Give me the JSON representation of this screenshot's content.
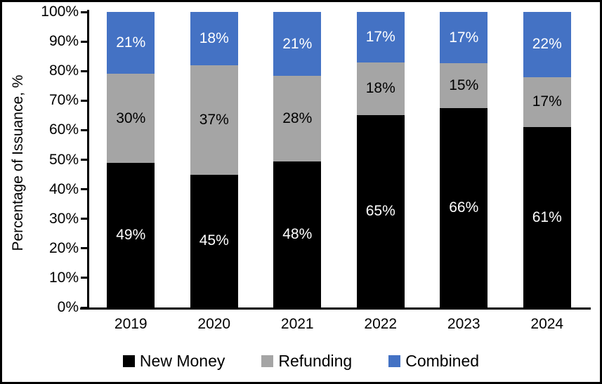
{
  "chart_data": {
    "type": "bar",
    "variant": "stacked-100",
    "title": "",
    "xlabel": "",
    "ylabel": "Percentage of Issuance, %",
    "ylim": [
      0,
      100
    ],
    "ytick_step": 10,
    "ytick_labels": [
      "0%",
      "10%",
      "20%",
      "30%",
      "40%",
      "50%",
      "60%",
      "70%",
      "80%",
      "90%",
      "100%"
    ],
    "categories": [
      "2019",
      "2020",
      "2021",
      "2022",
      "2023",
      "2024"
    ],
    "series": [
      {
        "name": "New Money",
        "color": "#000000",
        "label_color": "#FFFFFF",
        "values": [
          49,
          45,
          48,
          65,
          66,
          61
        ],
        "labels": [
          "49%",
          "45%",
          "48%",
          "65%",
          "66%",
          "61%"
        ]
      },
      {
        "name": "Refunding",
        "color": "#A5A5A5",
        "label_color": "#000000",
        "values": [
          30,
          37,
          28,
          18,
          15,
          17
        ],
        "labels": [
          "30%",
          "37%",
          "28%",
          "18%",
          "15%",
          "17%"
        ]
      },
      {
        "name": "Combined",
        "color": "#4472C4",
        "label_color": "#FFFFFF",
        "values": [
          21,
          18,
          21,
          17,
          17,
          22
        ],
        "labels": [
          "21%",
          "18%",
          "21%",
          "17%",
          "17%",
          "22%"
        ]
      }
    ],
    "legend_position": "bottom",
    "grid": false,
    "axis_color": "#000000",
    "background": "#FFFFFF",
    "frame_border_color": "#000000"
  }
}
